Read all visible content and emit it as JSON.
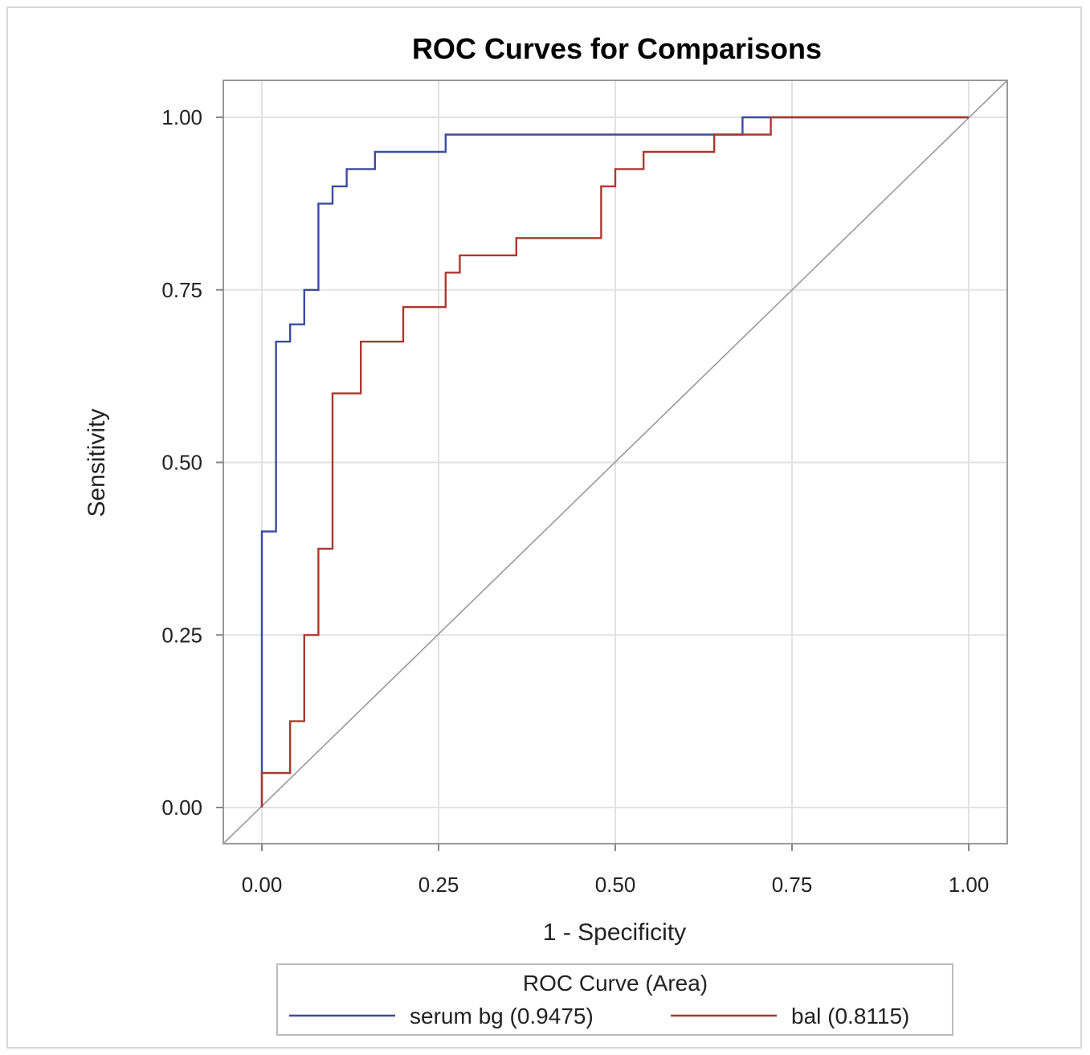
{
  "chart_data": {
    "type": "line",
    "title": "ROC Curves for Comparisons",
    "xlabel": "1 - Specificity",
    "ylabel": "Sensitivity",
    "xlim": [
      0,
      1
    ],
    "ylim": [
      0,
      1
    ],
    "xticks": [
      "0.00",
      "0.25",
      "0.50",
      "0.75",
      "1.00"
    ],
    "yticks": [
      "0.00",
      "0.25",
      "0.50",
      "0.75",
      "1.00"
    ],
    "grid": true,
    "legend": {
      "title": "ROC Curve (Area)",
      "placement": "bottom"
    },
    "series": [
      {
        "name": "serum bg",
        "legend_label": "serum bg  (0.9475)",
        "area": 0.9475,
        "color": "#3b4ba0",
        "step": true,
        "x": [
          0,
          0,
          0.02,
          0.02,
          0.04,
          0.04,
          0.06,
          0.06,
          0.08,
          0.08,
          0.1,
          0.1,
          0.12,
          0.12,
          0.16,
          0.16,
          0.26,
          0.26,
          0.68,
          0.68,
          1.0
        ],
        "y": [
          0,
          0.4,
          0.4,
          0.675,
          0.675,
          0.7,
          0.7,
          0.75,
          0.75,
          0.875,
          0.875,
          0.9,
          0.9,
          0.925,
          0.925,
          0.95,
          0.95,
          0.975,
          0.975,
          1.0,
          1.0
        ]
      },
      {
        "name": "bal",
        "legend_label": "bal  (0.8115)",
        "area": 0.8115,
        "color": "#a83a2e",
        "step": true,
        "x": [
          0,
          0,
          0.04,
          0.04,
          0.06,
          0.06,
          0.08,
          0.08,
          0.1,
          0.1,
          0.14,
          0.14,
          0.2,
          0.2,
          0.26,
          0.26,
          0.28,
          0.28,
          0.36,
          0.36,
          0.48,
          0.48,
          0.5,
          0.5,
          0.54,
          0.54,
          0.64,
          0.64,
          0.72,
          0.72,
          1.0
        ],
        "y": [
          0,
          0.05,
          0.05,
          0.125,
          0.125,
          0.25,
          0.25,
          0.375,
          0.375,
          0.6,
          0.6,
          0.675,
          0.675,
          0.725,
          0.725,
          0.775,
          0.775,
          0.8,
          0.8,
          0.825,
          0.825,
          0.9,
          0.9,
          0.925,
          0.925,
          0.95,
          0.95,
          0.975,
          0.975,
          1.0,
          1.0
        ]
      }
    ],
    "reference_line": {
      "x": [
        0,
        1
      ],
      "y": [
        0,
        1
      ],
      "color": "#999999"
    }
  }
}
